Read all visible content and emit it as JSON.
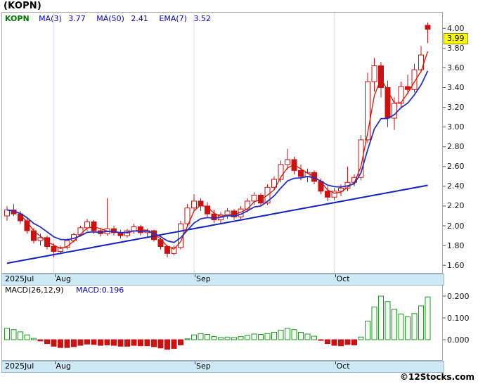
{
  "title": "(KOPN)",
  "colors": {
    "up_fill": "#ffffff",
    "down_fill": "#cc1111",
    "candle_stroke": "#cc1111",
    "ma3": "#dd1100",
    "ema7": "#2233cc",
    "ma50": "#0f22bb",
    "macd_pos_fill": "#f2fbf2",
    "macd_pos_stroke": "#229922",
    "macd_neg": "#cc1111",
    "frame_border": "#aaaaaa",
    "grid_line": "#d9dde8",
    "strip_bg": "#cde9f6",
    "badge_bg": "#ffff00",
    "legend_symbol_color": "#007700",
    "legend_indicator_color": "#0000cc"
  },
  "legend": {
    "symbol": "KOPN",
    "items": [
      {
        "label": "MA(3)",
        "value": "3.77"
      },
      {
        "label": "MA(50)",
        "value": "2.41"
      },
      {
        "label": "EMA(7)",
        "value": "3.52"
      }
    ]
  },
  "main_chart": {
    "y_axis_labels": [
      "4.00",
      "3.80",
      "3.60",
      "3.40",
      "3.20",
      "3.00",
      "2.80",
      "2.60",
      "2.40",
      "2.20",
      "2.00",
      "1.80",
      "1.60"
    ],
    "last_price_label": "3.99"
  },
  "x_axis": {
    "labels": [
      {
        "text": "2025Jul",
        "index": 0,
        "edge": true
      },
      {
        "text": "Aug",
        "index": 7
      },
      {
        "text": "Sep",
        "index": 28
      },
      {
        "text": "Oct",
        "index": 49
      }
    ]
  },
  "macd_panel": {
    "header_label": "MACD(26,12,9)",
    "value_label": "MACD:0.196",
    "y_axis_labels": [
      "0.200",
      "0.100",
      "0.000"
    ]
  },
  "footer": {
    "copyright": "©12Stocks.com"
  },
  "chart_data": {
    "type": "candlestick+macd",
    "symbol": "KOPN",
    "title": "(KOPN)",
    "ylim": [
      1.53,
      4.13
    ],
    "macd_ylim": [
      -0.09,
      0.25
    ],
    "months": [
      "2025Jul",
      "Aug",
      "Sep",
      "Oct"
    ],
    "indicators": {
      "ma3_last": 3.77,
      "ma50_last": 2.41,
      "ema7_last": 3.52,
      "macd_params": "26,12,9",
      "macd_last": 0.196
    },
    "dates": [
      "2025-07-23",
      "2025-07-24",
      "2025-07-25",
      "2025-07-28",
      "2025-07-29",
      "2025-07-30",
      "2025-07-31",
      "2025-08-01",
      "2025-08-04",
      "2025-08-05",
      "2025-08-06",
      "2025-08-07",
      "2025-08-08",
      "2025-08-11",
      "2025-08-12",
      "2025-08-13",
      "2025-08-14",
      "2025-08-15",
      "2025-08-18",
      "2025-08-19",
      "2025-08-20",
      "2025-08-21",
      "2025-08-22",
      "2025-08-25",
      "2025-08-26",
      "2025-08-27",
      "2025-08-28",
      "2025-08-29",
      "2025-09-02",
      "2025-09-03",
      "2025-09-04",
      "2025-09-05",
      "2025-09-08",
      "2025-09-09",
      "2025-09-10",
      "2025-09-11",
      "2025-09-12",
      "2025-09-15",
      "2025-09-16",
      "2025-09-17",
      "2025-09-18",
      "2025-09-19",
      "2025-09-22",
      "2025-09-23",
      "2025-09-24",
      "2025-09-25",
      "2025-09-26",
      "2025-09-29",
      "2025-09-30",
      "2025-10-01",
      "2025-10-02",
      "2025-10-03",
      "2025-10-06",
      "2025-10-07",
      "2025-10-08",
      "2025-10-09",
      "2025-10-10",
      "2025-10-13",
      "2025-10-14",
      "2025-10-15",
      "2025-10-16",
      "2025-10-17",
      "2025-10-20",
      "2025-10-21"
    ],
    "ohlc": [
      [
        2.1,
        2.2,
        2.05,
        2.16
      ],
      [
        2.16,
        2.22,
        2.1,
        2.12
      ],
      [
        2.12,
        2.15,
        2.02,
        2.05
      ],
      [
        2.05,
        2.08,
        1.92,
        1.95
      ],
      [
        1.95,
        1.98,
        1.82,
        1.85
      ],
      [
        1.85,
        1.92,
        1.8,
        1.88
      ],
      [
        1.88,
        1.9,
        1.76,
        1.79
      ],
      [
        1.79,
        1.82,
        1.68,
        1.74
      ],
      [
        1.74,
        1.8,
        1.71,
        1.78
      ],
      [
        1.78,
        1.87,
        1.76,
        1.85
      ],
      [
        1.85,
        1.93,
        1.83,
        1.91
      ],
      [
        1.91,
        2.0,
        1.89,
        1.98
      ],
      [
        1.98,
        2.07,
        1.95,
        2.04
      ],
      [
        2.04,
        2.06,
        1.92,
        1.95
      ],
      [
        1.95,
        1.98,
        1.89,
        1.92
      ],
      [
        1.92,
        2.28,
        1.9,
        1.97
      ],
      [
        1.97,
        2.0,
        1.9,
        1.93
      ],
      [
        1.93,
        1.96,
        1.87,
        1.9
      ],
      [
        1.9,
        1.97,
        1.88,
        1.95
      ],
      [
        1.95,
        2.02,
        1.92,
        1.99
      ],
      [
        1.99,
        2.01,
        1.9,
        1.93
      ],
      [
        1.93,
        1.97,
        1.89,
        1.95
      ],
      [
        1.95,
        1.96,
        1.84,
        1.86
      ],
      [
        1.86,
        1.88,
        1.76,
        1.79
      ],
      [
        1.79,
        1.81,
        1.68,
        1.72
      ],
      [
        1.72,
        1.8,
        1.7,
        1.78
      ],
      [
        1.78,
        2.05,
        1.76,
        2.02
      ],
      [
        2.02,
        2.22,
        2.0,
        2.18
      ],
      [
        2.18,
        2.32,
        2.14,
        2.25
      ],
      [
        2.25,
        2.28,
        2.15,
        2.2
      ],
      [
        2.2,
        2.24,
        2.08,
        2.12
      ],
      [
        2.12,
        2.16,
        2.03,
        2.06
      ],
      [
        2.06,
        2.14,
        2.02,
        2.11
      ],
      [
        2.11,
        2.18,
        2.07,
        2.15
      ],
      [
        2.15,
        2.17,
        2.06,
        2.09
      ],
      [
        2.09,
        2.2,
        2.07,
        2.17
      ],
      [
        2.17,
        2.28,
        2.14,
        2.25
      ],
      [
        2.25,
        2.34,
        2.21,
        2.31
      ],
      [
        2.31,
        2.33,
        2.2,
        2.23
      ],
      [
        2.23,
        2.42,
        2.21,
        2.39
      ],
      [
        2.39,
        2.5,
        2.36,
        2.47
      ],
      [
        2.47,
        2.66,
        2.44,
        2.62
      ],
      [
        2.62,
        2.78,
        2.57,
        2.67
      ],
      [
        2.67,
        2.7,
        2.52,
        2.56
      ],
      [
        2.56,
        2.62,
        2.46,
        2.5
      ],
      [
        2.5,
        2.58,
        2.44,
        2.54
      ],
      [
        2.54,
        2.56,
        2.42,
        2.45
      ],
      [
        2.45,
        2.48,
        2.32,
        2.35
      ],
      [
        2.35,
        2.4,
        2.25,
        2.29
      ],
      [
        2.29,
        2.38,
        2.26,
        2.35
      ],
      [
        2.35,
        2.42,
        2.3,
        2.38
      ],
      [
        2.38,
        2.6,
        2.35,
        2.44
      ],
      [
        2.44,
        2.52,
        2.4,
        2.49
      ],
      [
        2.49,
        2.92,
        2.46,
        2.87
      ],
      [
        2.87,
        3.55,
        2.84,
        3.46
      ],
      [
        3.46,
        3.7,
        3.36,
        3.62
      ],
      [
        3.62,
        3.66,
        3.3,
        3.4
      ],
      [
        3.4,
        3.47,
        3.0,
        3.09
      ],
      [
        3.09,
        3.3,
        2.97,
        3.24
      ],
      [
        3.24,
        3.46,
        3.2,
        3.41
      ],
      [
        3.41,
        3.53,
        3.33,
        3.38
      ],
      [
        3.38,
        3.64,
        3.35,
        3.58
      ],
      [
        3.58,
        3.82,
        3.55,
        3.73
      ],
      [
        4.03,
        4.06,
        3.85,
        3.99
      ]
    ],
    "ma50": [
      1.62,
      1.633,
      1.645,
      1.658,
      1.67,
      1.683,
      1.695,
      1.708,
      1.72,
      1.733,
      1.745,
      1.758,
      1.77,
      1.783,
      1.796,
      1.808,
      1.821,
      1.833,
      1.846,
      1.858,
      1.871,
      1.883,
      1.896,
      1.908,
      1.921,
      1.933,
      1.946,
      1.959,
      1.971,
      1.984,
      1.996,
      2.009,
      2.021,
      2.034,
      2.046,
      2.059,
      2.071,
      2.084,
      2.096,
      2.109,
      2.122,
      2.134,
      2.147,
      2.159,
      2.172,
      2.184,
      2.197,
      2.209,
      2.222,
      2.234,
      2.247,
      2.259,
      2.272,
      2.285,
      2.297,
      2.31,
      2.322,
      2.335,
      2.347,
      2.36,
      2.372,
      2.385,
      2.397,
      2.41
    ],
    "macd_histogram": [
      0.052,
      0.046,
      0.036,
      0.022,
      0.006,
      -0.006,
      -0.018,
      -0.03,
      -0.036,
      -0.036,
      -0.032,
      -0.026,
      -0.02,
      -0.022,
      -0.026,
      -0.024,
      -0.026,
      -0.03,
      -0.03,
      -0.026,
      -0.028,
      -0.028,
      -0.032,
      -0.038,
      -0.044,
      -0.04,
      -0.024,
      0.004,
      0.022,
      0.028,
      0.024,
      0.014,
      0.01,
      0.012,
      0.01,
      0.014,
      0.02,
      0.026,
      0.024,
      0.028,
      0.034,
      0.044,
      0.052,
      0.046,
      0.034,
      0.026,
      0.016,
      -0.002,
      -0.018,
      -0.026,
      -0.028,
      -0.022,
      -0.024,
      0.012,
      0.085,
      0.15,
      0.2,
      0.175,
      0.14,
      0.118,
      0.105,
      0.12,
      0.155,
      0.196
    ]
  }
}
